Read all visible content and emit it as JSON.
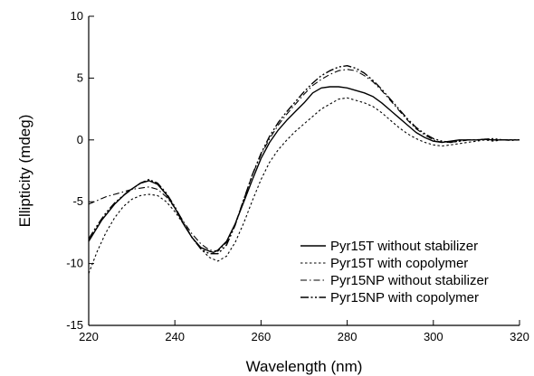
{
  "chart_data": {
    "type": "line",
    "title": "",
    "xlabel": "Wavelength (nm)",
    "ylabel": "Ellipticity (mdeg)",
    "xlim": [
      220,
      320
    ],
    "ylim": [
      -15,
      10
    ],
    "xticks": [
      220,
      240,
      260,
      280,
      300,
      320
    ],
    "yticks": [
      -15,
      -10,
      -5,
      0,
      5,
      10
    ],
    "grid": false,
    "legend_position": "bottom-right",
    "series": [
      {
        "name": "Pyr15T without stabilizer",
        "dash": "solid",
        "points": [
          [
            220,
            -8.2
          ],
          [
            223,
            -6.5
          ],
          [
            226,
            -5.2
          ],
          [
            229,
            -4.2
          ],
          [
            232,
            -3.5
          ],
          [
            234,
            -3.3
          ],
          [
            236,
            -3.6
          ],
          [
            238,
            -4.4
          ],
          [
            240,
            -5.5
          ],
          [
            242,
            -6.8
          ],
          [
            244,
            -7.9
          ],
          [
            246,
            -8.7
          ],
          [
            248,
            -9.0
          ],
          [
            249,
            -9.1
          ],
          [
            250,
            -8.9
          ],
          [
            252,
            -8.2
          ],
          [
            254,
            -6.8
          ],
          [
            256,
            -5.0
          ],
          [
            258,
            -3.2
          ],
          [
            260,
            -1.5
          ],
          [
            262,
            -0.2
          ],
          [
            264,
            0.8
          ],
          [
            266,
            1.6
          ],
          [
            268,
            2.3
          ],
          [
            270,
            3.0
          ],
          [
            272,
            3.8
          ],
          [
            274,
            4.2
          ],
          [
            276,
            4.3
          ],
          [
            278,
            4.3
          ],
          [
            280,
            4.2
          ],
          [
            282,
            4.0
          ],
          [
            284,
            3.8
          ],
          [
            286,
            3.5
          ],
          [
            288,
            3.0
          ],
          [
            290,
            2.4
          ],
          [
            292,
            1.8
          ],
          [
            294,
            1.2
          ],
          [
            296,
            0.6
          ],
          [
            298,
            0.2
          ],
          [
            300,
            -0.1
          ],
          [
            302,
            -0.2
          ],
          [
            304,
            -0.1
          ],
          [
            306,
            0.0
          ],
          [
            308,
            0.0
          ],
          [
            310,
            0.0
          ],
          [
            312,
            0.05
          ],
          [
            314,
            0.0
          ],
          [
            316,
            0.0
          ],
          [
            318,
            0.0
          ],
          [
            320,
            0.0
          ]
        ]
      },
      {
        "name": "Pyr15T with copolymer",
        "dash": "dot",
        "points": [
          [
            220,
            -10.8
          ],
          [
            222,
            -9.0
          ],
          [
            224,
            -7.5
          ],
          [
            226,
            -6.3
          ],
          [
            228,
            -5.4
          ],
          [
            230,
            -4.8
          ],
          [
            232,
            -4.5
          ],
          [
            234,
            -4.4
          ],
          [
            236,
            -4.5
          ],
          [
            238,
            -5.0
          ],
          [
            240,
            -5.8
          ],
          [
            242,
            -6.8
          ],
          [
            244,
            -7.9
          ],
          [
            246,
            -8.8
          ],
          [
            248,
            -9.5
          ],
          [
            250,
            -9.8
          ],
          [
            252,
            -9.4
          ],
          [
            254,
            -8.3
          ],
          [
            256,
            -6.7
          ],
          [
            258,
            -4.9
          ],
          [
            260,
            -3.2
          ],
          [
            262,
            -1.8
          ],
          [
            264,
            -0.8
          ],
          [
            266,
            0.0
          ],
          [
            268,
            0.7
          ],
          [
            270,
            1.3
          ],
          [
            272,
            1.9
          ],
          [
            274,
            2.5
          ],
          [
            276,
            2.9
          ],
          [
            278,
            3.3
          ],
          [
            280,
            3.4
          ],
          [
            282,
            3.2
          ],
          [
            284,
            3.0
          ],
          [
            286,
            2.7
          ],
          [
            288,
            2.2
          ],
          [
            290,
            1.6
          ],
          [
            292,
            1.0
          ],
          [
            294,
            0.5
          ],
          [
            296,
            0.1
          ],
          [
            298,
            -0.2
          ],
          [
            300,
            -0.4
          ],
          [
            302,
            -0.5
          ],
          [
            304,
            -0.4
          ],
          [
            306,
            -0.3
          ],
          [
            308,
            -0.2
          ],
          [
            310,
            -0.1
          ],
          [
            312,
            0.0
          ],
          [
            314,
            -0.1
          ],
          [
            316,
            0.0
          ],
          [
            318,
            0.0
          ],
          [
            320,
            0.0
          ]
        ]
      },
      {
        "name": "Pyr15NP without stabilizer",
        "dash": "dash-dot",
        "points": [
          [
            220,
            -5.2
          ],
          [
            222,
            -4.9
          ],
          [
            224,
            -4.6
          ],
          [
            226,
            -4.4
          ],
          [
            228,
            -4.2
          ],
          [
            230,
            -4.0
          ],
          [
            232,
            -3.9
          ],
          [
            234,
            -3.8
          ],
          [
            236,
            -4.0
          ],
          [
            238,
            -4.6
          ],
          [
            240,
            -5.5
          ],
          [
            242,
            -6.6
          ],
          [
            244,
            -7.6
          ],
          [
            246,
            -8.4
          ],
          [
            248,
            -8.9
          ],
          [
            250,
            -9.0
          ],
          [
            252,
            -8.3
          ],
          [
            254,
            -6.8
          ],
          [
            256,
            -4.8
          ],
          [
            258,
            -2.8
          ],
          [
            260,
            -1.2
          ],
          [
            262,
            0.1
          ],
          [
            264,
            1.2
          ],
          [
            266,
            2.1
          ],
          [
            268,
            2.9
          ],
          [
            270,
            3.7
          ],
          [
            272,
            4.4
          ],
          [
            274,
            4.9
          ],
          [
            276,
            5.3
          ],
          [
            278,
            5.6
          ],
          [
            280,
            5.7
          ],
          [
            282,
            5.6
          ],
          [
            284,
            5.2
          ],
          [
            286,
            4.7
          ],
          [
            288,
            4.0
          ],
          [
            290,
            3.2
          ],
          [
            292,
            2.4
          ],
          [
            294,
            1.6
          ],
          [
            296,
            0.9
          ],
          [
            298,
            0.4
          ],
          [
            300,
            0.0
          ],
          [
            302,
            -0.2
          ],
          [
            304,
            -0.2
          ],
          [
            306,
            -0.1
          ],
          [
            308,
            0.0
          ],
          [
            310,
            0.0
          ],
          [
            312,
            0.05
          ],
          [
            314,
            0.0
          ],
          [
            316,
            0.0
          ],
          [
            318,
            -0.05
          ],
          [
            320,
            0.0
          ]
        ]
      },
      {
        "name": "Pyr15NP with copolymer",
        "dash": "dash-dot-dot",
        "points": [
          [
            220,
            -8.0
          ],
          [
            222,
            -6.9
          ],
          [
            224,
            -5.9
          ],
          [
            226,
            -5.1
          ],
          [
            228,
            -4.5
          ],
          [
            230,
            -4.0
          ],
          [
            232,
            -3.5
          ],
          [
            234,
            -3.2
          ],
          [
            236,
            -3.5
          ],
          [
            238,
            -4.3
          ],
          [
            240,
            -5.4
          ],
          [
            242,
            -6.7
          ],
          [
            244,
            -7.9
          ],
          [
            246,
            -8.8
          ],
          [
            248,
            -9.2
          ],
          [
            250,
            -9.2
          ],
          [
            252,
            -8.5
          ],
          [
            254,
            -6.9
          ],
          [
            256,
            -4.8
          ],
          [
            258,
            -2.8
          ],
          [
            260,
            -1.1
          ],
          [
            262,
            0.3
          ],
          [
            264,
            1.4
          ],
          [
            266,
            2.3
          ],
          [
            268,
            3.1
          ],
          [
            270,
            3.9
          ],
          [
            272,
            4.6
          ],
          [
            274,
            5.2
          ],
          [
            276,
            5.6
          ],
          [
            278,
            5.9
          ],
          [
            280,
            6.0
          ],
          [
            282,
            5.8
          ],
          [
            284,
            5.4
          ],
          [
            286,
            4.8
          ],
          [
            288,
            4.1
          ],
          [
            290,
            3.3
          ],
          [
            292,
            2.5
          ],
          [
            294,
            1.7
          ],
          [
            296,
            1.0
          ],
          [
            298,
            0.5
          ],
          [
            300,
            0.1
          ],
          [
            302,
            -0.1
          ],
          [
            304,
            -0.2
          ],
          [
            306,
            -0.1
          ],
          [
            308,
            0.0
          ],
          [
            310,
            0.0
          ],
          [
            312,
            0.05
          ],
          [
            314,
            0.1
          ],
          [
            316,
            0.0
          ],
          [
            318,
            0.0
          ],
          [
            320,
            0.0
          ]
        ]
      }
    ]
  }
}
